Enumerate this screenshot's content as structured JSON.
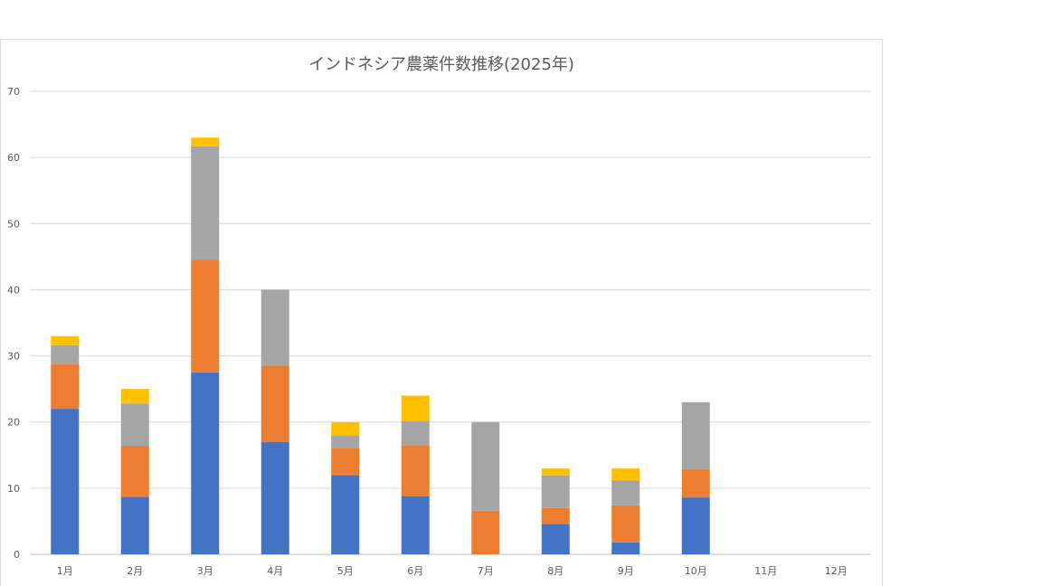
{
  "chart_data": {
    "type": "bar",
    "stacked": true,
    "title": "インドネシア農薬件数推移(2025年)",
    "categories": [
      "1月",
      "2月",
      "3月",
      "4月",
      "5月",
      "6月",
      "7月",
      "8月",
      "9月",
      "10月",
      "11月",
      "12月"
    ],
    "series": [
      {
        "color": "#4472c4",
        "values": [
          22,
          8.7,
          27.5,
          17,
          12,
          8.8,
          0,
          4.6,
          1.8,
          8.6,
          0,
          0
        ]
      },
      {
        "color": "#ed7d31",
        "values": [
          6.8,
          7.7,
          17,
          11.5,
          4,
          7.7,
          6.6,
          2.4,
          5.6,
          4.3,
          0,
          0
        ]
      },
      {
        "color": "#a5a5a5",
        "values": [
          2.8,
          6.4,
          17.2,
          11.5,
          2,
          3.7,
          13.4,
          4.9,
          3.8,
          10.1,
          0,
          0
        ]
      },
      {
        "color": "#ffc000",
        "values": [
          1.4,
          2.2,
          1.3,
          0,
          2,
          3.8,
          0,
          1.1,
          1.8,
          0,
          0,
          0
        ]
      }
    ],
    "ylim": [
      0,
      70
    ],
    "yticks": [
      0,
      10,
      20,
      30,
      40,
      50,
      60,
      70
    ],
    "grid": true
  }
}
